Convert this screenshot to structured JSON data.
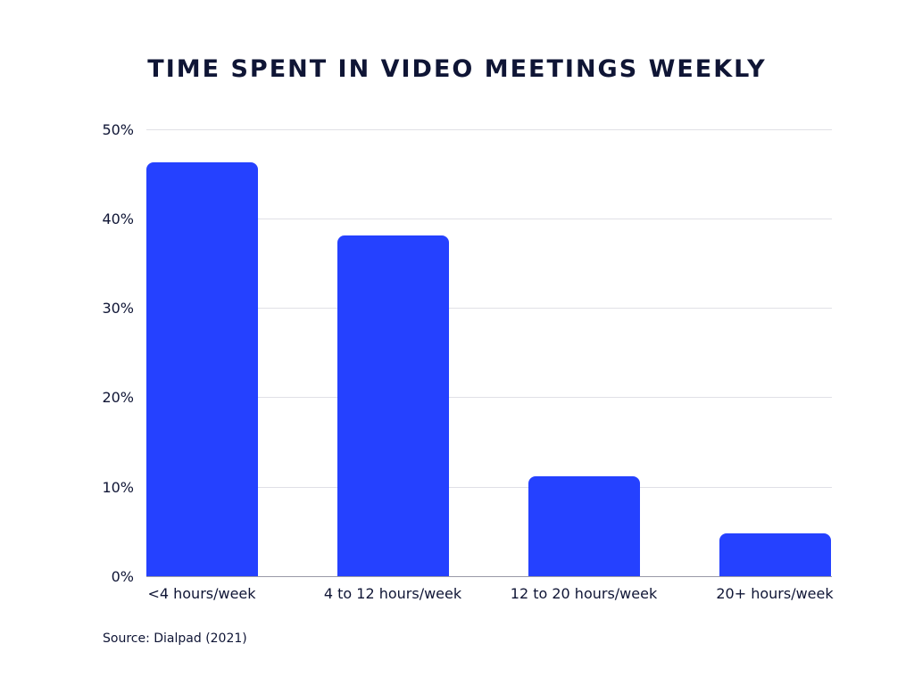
{
  "chart_data": {
    "type": "bar",
    "title": "TIME SPENT IN VIDEO MEETINGS WEEKLY",
    "xlabel": "",
    "ylabel": "",
    "categories": [
      "<4 hours/week",
      "4 to 12 hours/week",
      "12 to 20 hours/week",
      "20+ hours/week"
    ],
    "values": [
      46.3,
      38.1,
      11.2,
      4.8
    ],
    "ylim": [
      0,
      50
    ],
    "yticks": [
      "0%",
      "10%",
      "20%",
      "30%",
      "40%",
      "50%"
    ],
    "grid": true,
    "legend": null,
    "bar_color": "#2541ff",
    "source": "Source: Dialpad (2021)"
  }
}
